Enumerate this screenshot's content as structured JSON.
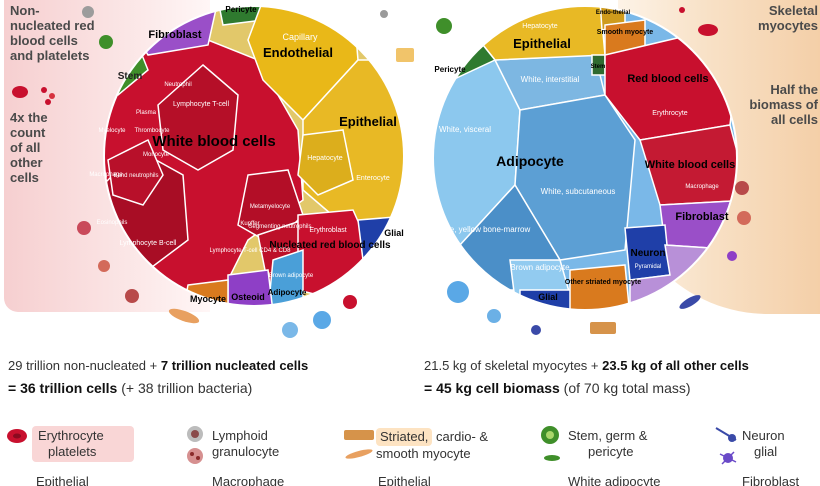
{
  "left": {
    "side_label": "Non-nucleated red blood cells and platelets",
    "side_note": "4x the count of all other cells",
    "regions": {
      "white_blood": "White blood cells",
      "endothelial": "Endothelial",
      "capillary": "Capillary",
      "epithelial": "Epithelial",
      "fibroblast": "Fibroblast",
      "stem": "Stem",
      "pericyte": "Pericyte",
      "nucleated_rbc": "Nucleated red blood cells",
      "glial": "Glial",
      "myocyte": "Myocyte",
      "osteoid": "Osteoid",
      "adipocyte": "Adipocyte",
      "hepatocyte": "Hepatocyte",
      "enterocyte": "Enterocyte",
      "lymph_t": "Lymphocyte T-cell",
      "lymph_b": "Lymphocyte B-cell",
      "band": "Band neutrophils",
      "myelocyte": "Myelocyte",
      "plasma": "Plasma",
      "neutrophil": "Neutrophil",
      "thrombocyte": "Thrombocyte",
      "monocyte": "Monocyte",
      "metamyelocyte": "Metamyelocyte",
      "kupffer": "Kupffer",
      "macrophage": "Macrophage",
      "eosinophils": "Eosinophils",
      "segmenting": "Segmenting neutrophils",
      "tcell_cd4": "Lymphocyte T-cell CD4 & CD8",
      "erythroblast": "Erythroblast",
      "brown_adipocyte": "Brown adipocyte"
    }
  },
  "right": {
    "side_label": "Skeletal myocytes",
    "side_note": "Half the biomass of all cells",
    "regions": {
      "adipocyte": "Adipocyte",
      "epithelial": "Epithelial",
      "red_blood": "Red blood cells",
      "white_blood": "White blood cells",
      "fibroblast": "Fibroblast",
      "neuron": "Neuron",
      "glial": "Glial",
      "other_striated": "Other striated myocyte",
      "pericyte": "Pericyte",
      "stem": "Stem",
      "endothelial": "Endo-thelial",
      "smooth_myocyte": "Smooth myocyte",
      "white_interstitial": "White, interstitial",
      "white_visceral": "White, visceral",
      "white_subcutaneous": "White, subcutaneous",
      "white_yellow": "White, yellow bone-marrow",
      "brown_adipocyte": "Brown adipocyte",
      "hepatocyte": "Hepatocyte",
      "erythrocyte": "Erythrocyte",
      "macrophage": "Macrophage",
      "pyramidal": "Pyramidal"
    }
  },
  "stats": {
    "left_line1_a": "29 trillion non-nucleated + ",
    "left_line1_b": "7 trillion nucleated cells",
    "left_line2_a": "= 36 trillion cells",
    "left_line2_b": " (+ 38 trillion bacteria)",
    "right_line1_a": "21.5 kg of skeletal myocytes + ",
    "right_line1_b": "23.5 kg of all other cells",
    "right_line2_a": "= 45 kg cell biomass",
    "right_line2_b": " (of 70 kg total mass)"
  },
  "legend": {
    "erythrocyte_a": "Erythrocyte",
    "erythrocyte_b": "platelets",
    "lymphoid": "Lymphoid",
    "granulocyte": "granulocyte",
    "striated_a": "Striated,",
    "striated_b": " cardio- &",
    "striated_c": "smooth myocyte",
    "stem_a": "Stem, germ &",
    "stem_b": "pericyte",
    "neuron": "Neuron",
    "glial": "glial",
    "row3_a": "Epithelial",
    "row3_b": "Macrophage",
    "row3_c": "Epithelial",
    "row3_d": "White adipocyte",
    "row3_e": "Fibroblast"
  },
  "colors": {
    "red": "#c8102e",
    "yellow": "#e8b925",
    "blue": "#4a9fd8",
    "purple": "#8e3fc6",
    "orange": "#d97a1e",
    "green": "#3f8f2a",
    "darkblue": "#1f3fa8"
  }
}
